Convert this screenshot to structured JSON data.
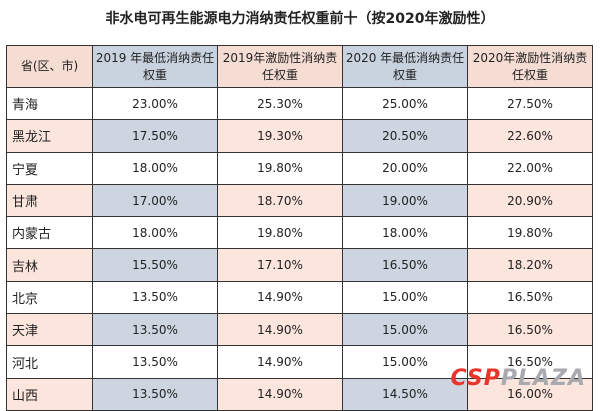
{
  "title": "非水电可再生能源电力消纳责任权重前十（按2020年激励性）",
  "table": {
    "headers": [
      "省(区、市)",
      "2019 年最低消纳责任权重",
      "2019年激励性消纳责任权重",
      "2020 年最低消纳责任权重",
      "2020年激励性消纳责任权重"
    ],
    "rows": [
      [
        "青海",
        "23.00%",
        "25.30%",
        "25.00%",
        "27.50%"
      ],
      [
        "黑龙江",
        "17.50%",
        "19.30%",
        "20.50%",
        "22.60%"
      ],
      [
        "宁夏",
        "18.00%",
        "19.80%",
        "20.00%",
        "22.00%"
      ],
      [
        "甘肃",
        "17.00%",
        "18.70%",
        "19.00%",
        "20.90%"
      ],
      [
        "内蒙古",
        "18.00%",
        "19.80%",
        "18.00%",
        "19.80%"
      ],
      [
        "吉林",
        "15.50%",
        "17.10%",
        "16.50%",
        "18.20%"
      ],
      [
        "北京",
        "13.50%",
        "14.90%",
        "15.00%",
        "16.50%"
      ],
      [
        "天津",
        "13.50%",
        "14.90%",
        "15.00%",
        "16.50%"
      ],
      [
        "河北",
        "13.50%",
        "14.90%",
        "15.00%",
        "16.50%"
      ],
      [
        "山西",
        "13.50%",
        "14.90%",
        "14.50%",
        "16.00%"
      ]
    ]
  },
  "watermark": {
    "brand": "CSPPLAZA",
    "colors": {
      "csp": "#e8342a",
      "plaza": "#a8aab0"
    }
  },
  "colors": {
    "header_pink": "#f6ddd4",
    "header_blue": "#c9d3df",
    "row_pink": "#fbe5dc",
    "row_blue": "#ccd5e0"
  }
}
